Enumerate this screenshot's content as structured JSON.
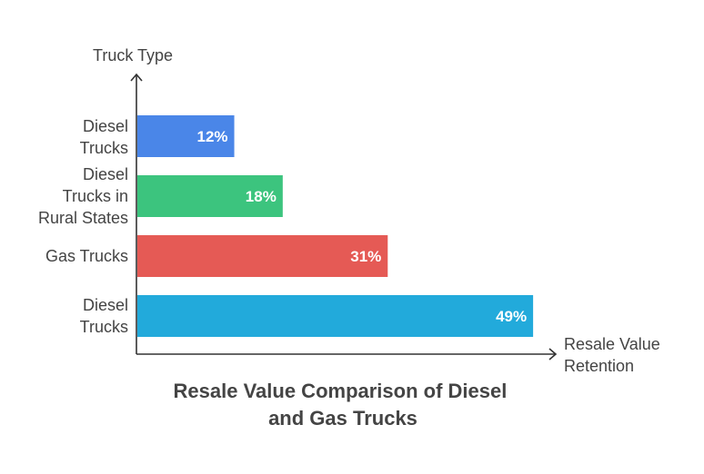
{
  "chart_data": {
    "type": "bar",
    "orientation": "horizontal",
    "title": "Resale Value Comparison of Diesel and Gas Trucks",
    "ylabel": "Truck Type",
    "xlabel": "Resale Value Retention",
    "categories": [
      "Diesel Trucks",
      "Diesel Trucks in Rural States",
      "Gas Trucks",
      "Diesel Trucks"
    ],
    "values": [
      12,
      18,
      31,
      49
    ],
    "value_labels": [
      "12%",
      "18%",
      "31%",
      "49%"
    ],
    "colors": [
      "#4A86E8",
      "#3CC47E",
      "#E55A55",
      "#22AADB"
    ],
    "xlim": [
      0,
      52
    ],
    "grid": false,
    "legend": "none"
  }
}
